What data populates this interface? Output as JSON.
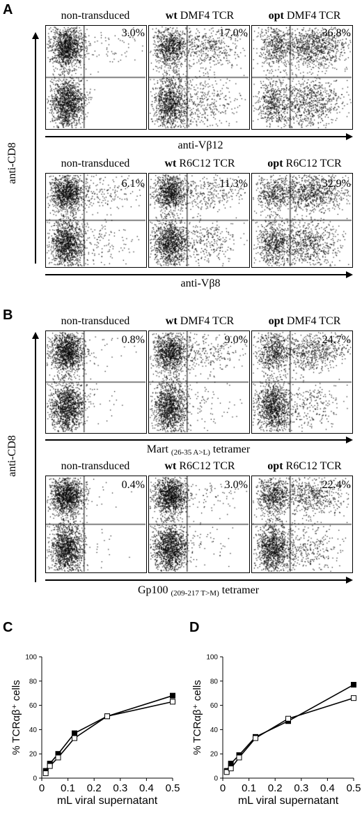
{
  "panel_letters": [
    "A",
    "B",
    "C",
    "D"
  ],
  "flow_y_label": "anti-CD8",
  "chart_data": [
    {
      "id": "A-top",
      "type": "scatter",
      "x_label": "anti-Vβ12",
      "y_label": "anti-CD8",
      "plots": [
        {
          "title_bold": "",
          "title": "non-transduced",
          "percent": "3.0%",
          "density": {
            "ul": 0.45,
            "ll": 0.52,
            "ur": 0.03,
            "lr": 0.0
          }
        },
        {
          "title_bold": "wt",
          "title": " DMF4 TCR",
          "percent": "17.0%",
          "density": {
            "ul": 0.3,
            "ll": 0.4,
            "ur": 0.17,
            "lr": 0.13
          }
        },
        {
          "title_bold": "opt",
          "title": " DMF4 TCR",
          "percent": "36.8%",
          "density": {
            "ul": 0.14,
            "ll": 0.2,
            "ur": 0.37,
            "lr": 0.29
          }
        }
      ]
    },
    {
      "id": "A-bottom",
      "type": "scatter",
      "x_label": "anti-Vβ8",
      "y_label": "anti-CD8",
      "plots": [
        {
          "title_bold": "",
          "title": "non-transduced",
          "percent": "6.1%",
          "density": {
            "ul": 0.42,
            "ll": 0.47,
            "ur": 0.06,
            "lr": 0.05
          }
        },
        {
          "title_bold": "wt",
          "title": " R6C12 TCR",
          "percent": "11.3%",
          "density": {
            "ul": 0.35,
            "ll": 0.42,
            "ur": 0.11,
            "lr": 0.12
          }
        },
        {
          "title_bold": "opt",
          "title": " R6C12 TCR",
          "percent": "32.9%",
          "density": {
            "ul": 0.16,
            "ll": 0.24,
            "ur": 0.33,
            "lr": 0.27
          }
        }
      ]
    },
    {
      "id": "B-top",
      "type": "scatter",
      "x_label_main": "Mart",
      "x_label_sub": "(26-35 A>L)",
      "x_label_tail": " tetramer",
      "y_label": "anti-CD8",
      "plots": [
        {
          "title_bold": "",
          "title": "non-transduced",
          "percent": "0.8%",
          "density": {
            "ul": 0.48,
            "ll": 0.5,
            "ur": 0.01,
            "lr": 0.01
          }
        },
        {
          "title_bold": "wt",
          "title": " DMF4 TCR",
          "percent": "9.0%",
          "density": {
            "ul": 0.4,
            "ll": 0.48,
            "ur": 0.09,
            "lr": 0.03
          }
        },
        {
          "title_bold": "opt",
          "title": " DMF4 TCR",
          "percent": "24.7%",
          "density": {
            "ul": 0.22,
            "ll": 0.43,
            "ur": 0.25,
            "lr": 0.1
          }
        }
      ]
    },
    {
      "id": "B-bottom",
      "type": "scatter",
      "x_label_main": "Gp100",
      "x_label_sub": "(209-217 T>M)",
      "x_label_tail": " tetramer",
      "y_label": "anti-CD8",
      "plots": [
        {
          "title_bold": "",
          "title": "non-transduced",
          "percent": "0.4%",
          "density": {
            "ul": 0.49,
            "ll": 0.5,
            "ur": 0.004,
            "lr": 0.006
          }
        },
        {
          "title_bold": "wt",
          "title": " R6C12 TCR",
          "percent": "3.0%",
          "density": {
            "ul": 0.45,
            "ll": 0.5,
            "ur": 0.03,
            "lr": 0.02
          }
        },
        {
          "title_bold": "opt",
          "title": " R6C12 TCR",
          "percent": "22.4%",
          "density": {
            "ul": 0.24,
            "ll": 0.42,
            "ur": 0.22,
            "lr": 0.12
          }
        }
      ]
    },
    {
      "id": "C",
      "type": "line",
      "xlabel": "mL viral supernatant",
      "ylabel": "% TCRαβ⁺ cells",
      "xlim": [
        0,
        0.5
      ],
      "ylim": [
        0,
        100
      ],
      "x_ticks": [
        "0",
        "0.1",
        "0.2",
        "0.3",
        "0.4",
        "0.5"
      ],
      "y_ticks": [
        "0",
        "20",
        "40",
        "60",
        "80",
        "100"
      ],
      "series": [
        {
          "marker": "filled-square",
          "points": [
            [
              0.015,
              6
            ],
            [
              0.031,
              12
            ],
            [
              0.0625,
              20
            ],
            [
              0.125,
              37
            ],
            [
              0.25,
              51
            ],
            [
              0.5,
              68
            ]
          ]
        },
        {
          "marker": "open-square",
          "points": [
            [
              0.015,
              4
            ],
            [
              0.031,
              10
            ],
            [
              0.0625,
              17
            ],
            [
              0.125,
              33
            ],
            [
              0.25,
              51
            ],
            [
              0.5,
              63
            ]
          ]
        }
      ]
    },
    {
      "id": "D",
      "type": "line",
      "xlabel": "mL viral supernatant",
      "ylabel": "% TCRαβ⁺ cells",
      "xlim": [
        0,
        0.5
      ],
      "ylim": [
        0,
        100
      ],
      "x_ticks": [
        "0",
        "0.1",
        "0.2",
        "0.3",
        "0.4",
        "0.5"
      ],
      "y_ticks": [
        "0",
        "20",
        "40",
        "60",
        "80",
        "100"
      ],
      "series": [
        {
          "marker": "filled-square",
          "points": [
            [
              0.015,
              6
            ],
            [
              0.031,
              12
            ],
            [
              0.0625,
              19
            ],
            [
              0.125,
              34
            ],
            [
              0.25,
              47
            ],
            [
              0.5,
              77
            ]
          ]
        },
        {
          "marker": "open-square",
          "points": [
            [
              0.015,
              5
            ],
            [
              0.031,
              8
            ],
            [
              0.0625,
              17
            ],
            [
              0.125,
              33
            ],
            [
              0.25,
              49
            ],
            [
              0.5,
              66
            ]
          ]
        }
      ]
    }
  ]
}
